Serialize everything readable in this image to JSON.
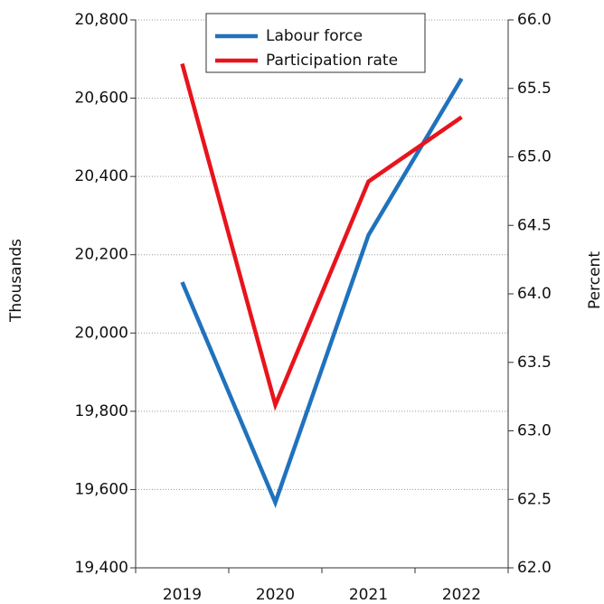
{
  "chart_data": {
    "type": "line",
    "categories": [
      "2019",
      "2020",
      "2021",
      "2022"
    ],
    "series": [
      {
        "name": "Labour force",
        "color": "#2072bd",
        "values": [
          20130,
          19567,
          20250,
          20650
        ]
      },
      {
        "name": "Participation rate",
        "color": "#e8141c",
        "axis": "y2",
        "values": [
          65.68,
          63.19,
          64.82,
          65.29
        ]
      }
    ],
    "ylabel": "Thousands",
    "y2label": "Percent",
    "ylim": [
      19400,
      20800
    ],
    "yticks": [
      {
        "value": 19400,
        "label": "19,400"
      },
      {
        "value": 19600,
        "label": "19,600"
      },
      {
        "value": 19800,
        "label": "19,800"
      },
      {
        "value": 20000,
        "label": "20,000"
      },
      {
        "value": 20200,
        "label": "20,200"
      },
      {
        "value": 20400,
        "label": "20,400"
      },
      {
        "value": 20600,
        "label": "20,600"
      },
      {
        "value": 20800,
        "label": "20,800"
      }
    ],
    "y2lim": [
      62,
      66
    ],
    "y2ticks": [
      {
        "value": 62,
        "label": "62.0"
      },
      {
        "value": 62.5,
        "label": "62.5"
      },
      {
        "value": 63,
        "label": "63.0"
      },
      {
        "value": 63.5,
        "label": "63.5"
      },
      {
        "value": 64,
        "label": "64.0"
      },
      {
        "value": 64.5,
        "label": "64.5"
      },
      {
        "value": 65,
        "label": "65.0"
      },
      {
        "value": 65.5,
        "label": "65.5"
      },
      {
        "value": 66,
        "label": "66.0"
      }
    ],
    "grid": true
  }
}
